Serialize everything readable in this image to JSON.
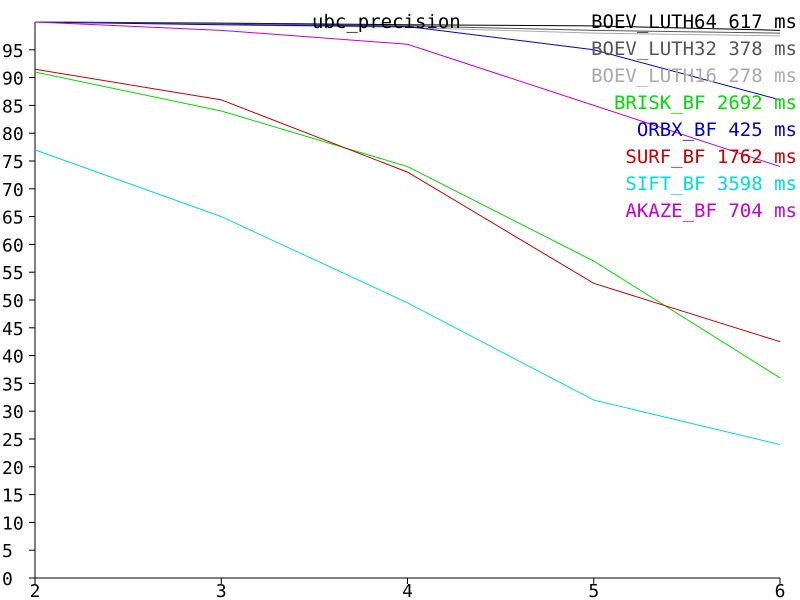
{
  "chart_data": {
    "type": "line",
    "title": "ubc_precision",
    "x": [
      2,
      3,
      4,
      5,
      6
    ],
    "xlim": [
      2,
      6
    ],
    "ylim": [
      0,
      100
    ],
    "x_ticks": [
      "2",
      "3",
      "4",
      "5",
      "6"
    ],
    "y_ticks": [
      "0",
      "5",
      "10",
      "15",
      "20",
      "25",
      "30",
      "35",
      "40",
      "45",
      "50",
      "55",
      "60",
      "65",
      "70",
      "75",
      "80",
      "85",
      "90",
      "95"
    ],
    "grid": false,
    "legend_position": "top-right",
    "series": [
      {
        "name": "BOEV_LUTH64 617 ms",
        "color": "#000000",
        "values": [
          100,
          99.8,
          99.5,
          99.3,
          98.5
        ]
      },
      {
        "name": "BOEV_LUTH32 378 ms",
        "color": "#555555",
        "values": [
          100,
          99.7,
          99.3,
          98.5,
          98.0
        ]
      },
      {
        "name": "BOEV_LUTH16 278 ms",
        "color": "#aaaaaa",
        "values": [
          100,
          99.5,
          99.0,
          98.0,
          97.5
        ]
      },
      {
        "name": "BRISK_BF 2692 ms",
        "color": "#00dd00",
        "values": [
          91,
          84,
          74,
          57,
          36
        ]
      },
      {
        "name": "ORBX_BF 425 ms",
        "color": "#0000cc",
        "values": [
          100,
          99.5,
          99.2,
          95,
          86
        ]
      },
      {
        "name": "SURF_BF 1762 ms",
        "color": "#cc0000",
        "values": [
          91.5,
          86,
          73,
          53,
          42.5
        ]
      },
      {
        "name": "SIFT_BF 3598 ms",
        "color": "#00dddd",
        "values": [
          77,
          65,
          49.5,
          32,
          24
        ]
      },
      {
        "name": "AKAZE_BF 704 ms",
        "color": "#cc00cc",
        "values": [
          100,
          98.5,
          96,
          85,
          74
        ]
      }
    ]
  }
}
